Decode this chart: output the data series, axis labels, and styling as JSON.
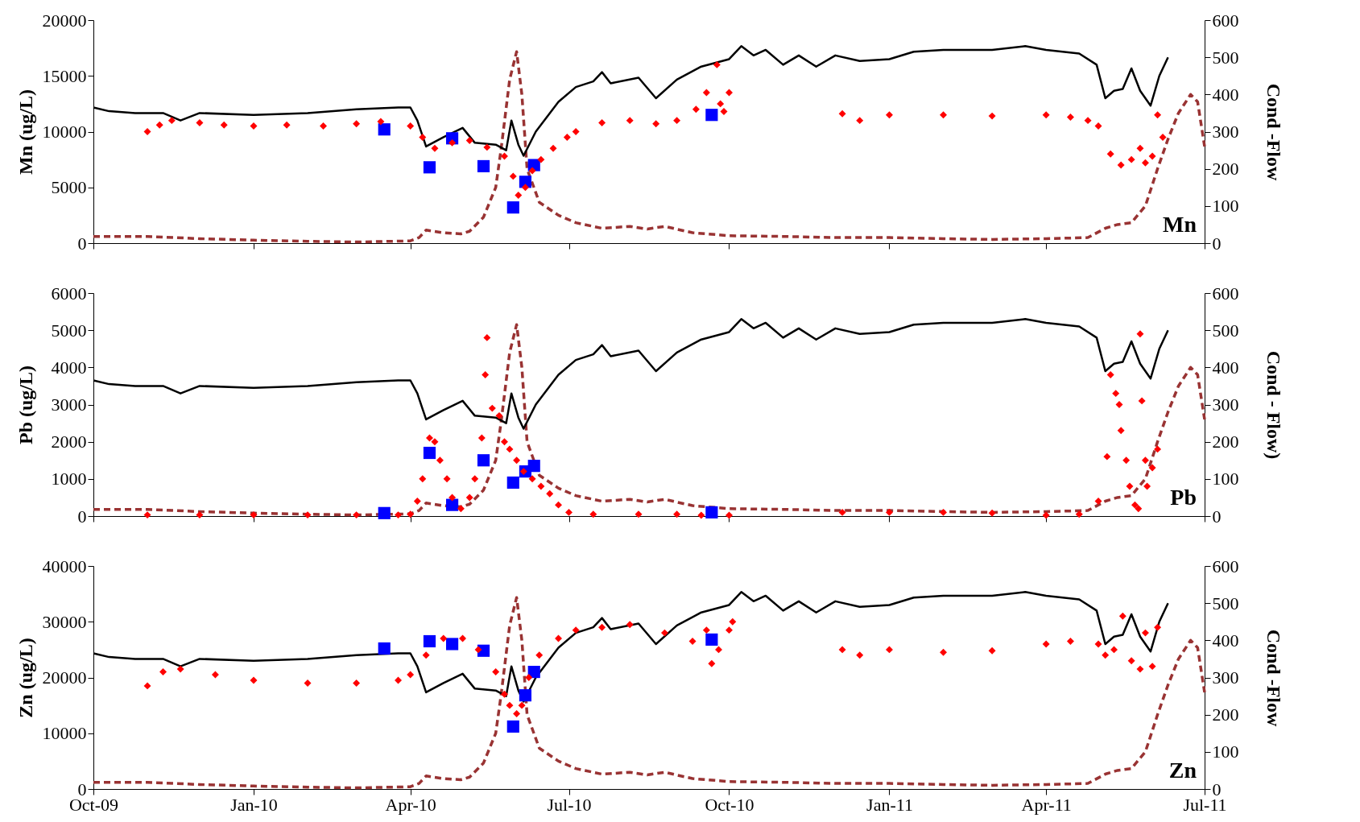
{
  "chart_data": [
    {
      "type": "scatter",
      "ylabel": "Mn (ug/L)",
      "y2label": "Cond -Flow",
      "annotations": [
        "Mn"
      ],
      "tick_labels": "y",
      "grid": false,
      "xlim": [
        "2009-10-01",
        "2011-07-01"
      ],
      "xticks": [
        {
          "value": "2009-10-01",
          "label": null
        },
        {
          "value": "2010-01-01",
          "label": null
        },
        {
          "value": "2010-04-01",
          "label": null
        },
        {
          "value": "2010-07-01",
          "label": null
        },
        {
          "value": "2010-10-01",
          "label": null
        },
        {
          "value": "2011-01-01",
          "label": null
        },
        {
          "value": "2011-04-01",
          "label": null
        },
        {
          "value": "2011-07-01",
          "label": null
        }
      ],
      "ylim": [
        0,
        20000
      ],
      "yticks": [
        0,
        5000,
        10000,
        15000,
        20000
      ],
      "y2lim": [
        0,
        600
      ],
      "y2ticks": [
        0,
        100,
        200,
        300,
        400,
        500,
        600
      ],
      "series": [
        {
          "type": "scatter",
          "marker": "diamond",
          "color": "#ff0000",
          "x": [
            "2009-11-01",
            "2009-11-08",
            "2009-11-15",
            "2009-12-01",
            "2009-12-15",
            "2010-01-01",
            "2010-01-20",
            "2010-02-10",
            "2010-03-01",
            "2010-03-15",
            "2010-04-01",
            "2010-04-08",
            "2010-04-15",
            "2010-04-25",
            "2010-05-05",
            "2010-05-15",
            "2010-05-25",
            "2010-05-30",
            "2010-06-02",
            "2010-06-06",
            "2010-06-10",
            "2010-06-15",
            "2010-06-22",
            "2010-06-30",
            "2010-07-05",
            "2010-07-20",
            "2010-08-05",
            "2010-08-20",
            "2010-09-01",
            "2010-09-12",
            "2010-09-18",
            "2010-09-24",
            "2010-09-26",
            "2010-09-28",
            "2010-10-01",
            "2010-12-05",
            "2010-12-15",
            "2011-01-01",
            "2011-02-01",
            "2011-03-01",
            "2011-04-01",
            "2011-04-15",
            "2011-04-25",
            "2011-05-01",
            "2011-05-08",
            "2011-05-14",
            "2011-05-20",
            "2011-05-25",
            "2011-05-28",
            "2011-06-01",
            "2011-06-04",
            "2011-06-07"
          ],
          "values": [
            10000,
            10600,
            11000,
            10800,
            10600,
            10500,
            10600,
            10500,
            10700,
            10900,
            10500,
            9500,
            8500,
            9000,
            9200,
            8600,
            7800,
            6000,
            4300,
            5000,
            6500,
            7500,
            8500,
            9500,
            10000,
            10800,
            11000,
            10700,
            11000,
            12000,
            13500,
            16000,
            12500,
            11800,
            13500,
            11600,
            11000,
            11500,
            11500,
            11400,
            11500,
            11300,
            11000,
            10500,
            8000,
            7000,
            7500,
            8500,
            7200,
            7800,
            11500,
            9500
          ]
        },
        {
          "type": "scatter",
          "marker": "square",
          "color": "#0000ff",
          "x": [
            "2010-03-17",
            "2010-04-12",
            "2010-04-25",
            "2010-05-13",
            "2010-05-30",
            "2010-06-06",
            "2010-06-11",
            "2010-09-21"
          ],
          "values": [
            10200,
            6800,
            9400,
            6900,
            3200,
            5500,
            7000,
            11500
          ]
        },
        {
          "type": "line",
          "axis": "y2",
          "marker": "none",
          "line_style": "solid",
          "color": "#000000",
          "x": [
            "2009-10-01",
            "2009-10-10",
            "2009-10-25",
            "2009-11-10",
            "2009-11-20",
            "2009-12-01",
            "2010-01-01",
            "2010-02-01",
            "2010-03-01",
            "2010-03-25",
            "2010-04-01",
            "2010-04-05",
            "2010-04-10",
            "2010-04-20",
            "2010-05-01",
            "2010-05-08",
            "2010-05-20",
            "2010-05-26",
            "2010-05-29",
            "2010-06-02",
            "2010-06-05",
            "2010-06-12",
            "2010-06-25",
            "2010-07-05",
            "2010-07-15",
            "2010-07-20",
            "2010-07-25",
            "2010-08-10",
            "2010-08-20",
            "2010-09-01",
            "2010-09-15",
            "2010-10-01",
            "2010-10-08",
            "2010-10-15",
            "2010-10-22",
            "2010-11-01",
            "2010-11-10",
            "2010-11-20",
            "2010-12-01",
            "2010-12-15",
            "2011-01-01",
            "2011-01-15",
            "2011-02-01",
            "2011-03-01",
            "2011-03-20",
            "2011-04-01",
            "2011-04-20",
            "2011-04-30",
            "2011-05-05",
            "2011-05-10",
            "2011-05-15",
            "2011-05-20",
            "2011-05-25",
            "2011-05-31",
            "2011-06-05",
            "2011-06-10"
          ],
          "values": [
            365,
            355,
            350,
            350,
            330,
            350,
            345,
            350,
            360,
            365,
            365,
            330,
            260,
            285,
            310,
            270,
            265,
            250,
            330,
            265,
            235,
            300,
            380,
            420,
            435,
            460,
            430,
            445,
            390,
            440,
            475,
            495,
            530,
            505,
            520,
            480,
            505,
            475,
            505,
            490,
            495,
            515,
            520,
            520,
            530,
            520,
            510,
            480,
            390,
            410,
            415,
            470,
            410,
            370,
            450,
            500
          ]
        },
        {
          "type": "line",
          "axis": "y2",
          "marker": "none",
          "line_style": "dashed",
          "color": "#993333",
          "x": [
            "2009-10-01",
            "2009-11-01",
            "2009-12-01",
            "2010-01-01",
            "2010-02-01",
            "2010-03-01",
            "2010-04-01",
            "2010-04-06",
            "2010-04-10",
            "2010-04-20",
            "2010-04-30",
            "2010-05-05",
            "2010-05-13",
            "2010-05-20",
            "2010-05-23",
            "2010-05-28",
            "2010-06-01",
            "2010-06-04",
            "2010-06-07",
            "2010-06-14",
            "2010-06-25",
            "2010-07-05",
            "2010-07-20",
            "2010-08-05",
            "2010-08-15",
            "2010-08-25",
            "2010-09-10",
            "2010-10-01",
            "2010-11-01",
            "2010-12-01",
            "2011-01-01",
            "2011-02-01",
            "2011-03-01",
            "2011-04-01",
            "2011-04-25",
            "2011-05-05",
            "2011-05-12",
            "2011-05-20",
            "2011-05-28",
            "2011-06-04",
            "2011-06-10",
            "2011-06-16",
            "2011-06-23",
            "2011-06-27",
            "2011-07-01"
          ],
          "values": [
            18,
            18,
            12,
            8,
            5,
            3,
            6,
            15,
            35,
            28,
            25,
            32,
            70,
            150,
            250,
            440,
            515,
            400,
            200,
            110,
            75,
            55,
            40,
            45,
            38,
            45,
            28,
            20,
            18,
            15,
            15,
            12,
            10,
            12,
            15,
            40,
            50,
            55,
            100,
            200,
            280,
            350,
            400,
            380,
            260
          ]
        }
      ]
    },
    {
      "type": "scatter",
      "ylabel": "Pb (ug/L)",
      "y2label": "Cond - Flow)",
      "annotations": [
        "Pb"
      ],
      "tick_labels": "y",
      "grid": false,
      "xlim": [
        "2009-10-01",
        "2011-07-01"
      ],
      "xticks": [
        {
          "value": "2009-10-01",
          "label": null
        },
        {
          "value": "2010-01-01",
          "label": null
        },
        {
          "value": "2010-04-01",
          "label": null
        },
        {
          "value": "2010-07-01",
          "label": null
        },
        {
          "value": "2010-10-01",
          "label": null
        },
        {
          "value": "2011-01-01",
          "label": null
        },
        {
          "value": "2011-04-01",
          "label": null
        },
        {
          "value": "2011-07-01",
          "label": null
        }
      ],
      "ylim": [
        0,
        6000
      ],
      "yticks": [
        0,
        1000,
        2000,
        3000,
        4000,
        5000,
        6000
      ],
      "y2lim": [
        0,
        600
      ],
      "y2ticks": [
        0,
        100,
        200,
        300,
        400,
        500,
        600
      ],
      "series": [
        {
          "type": "scatter",
          "marker": "diamond",
          "color": "#ff0000",
          "x": [
            "2009-11-01",
            "2009-12-01",
            "2010-01-01",
            "2010-02-01",
            "2010-03-01",
            "2010-03-25",
            "2010-04-01",
            "2010-04-05",
            "2010-04-08",
            "2010-04-12",
            "2010-04-15",
            "2010-04-18",
            "2010-04-22",
            "2010-04-25",
            "2010-04-30",
            "2010-05-05",
            "2010-05-08",
            "2010-05-12",
            "2010-05-14",
            "2010-05-15",
            "2010-05-18",
            "2010-05-22",
            "2010-05-25",
            "2010-05-28",
            "2010-06-01",
            "2010-06-05",
            "2010-06-10",
            "2010-06-15",
            "2010-06-20",
            "2010-06-25",
            "2010-07-01",
            "2010-07-15",
            "2010-08-10",
            "2010-09-01",
            "2010-09-15",
            "2010-10-01",
            "2010-12-05",
            "2011-01-01",
            "2011-02-01",
            "2011-03-01",
            "2011-04-01",
            "2011-04-20",
            "2011-05-01",
            "2011-05-06",
            "2011-05-08",
            "2011-05-11",
            "2011-05-13",
            "2011-05-14",
            "2011-05-17",
            "2011-05-19",
            "2011-05-22",
            "2011-05-24",
            "2011-05-25",
            "2011-05-26",
            "2011-05-28",
            "2011-05-29",
            "2011-06-01",
            "2011-06-04"
          ],
          "values": [
            30,
            30,
            30,
            30,
            30,
            30,
            50,
            400,
            1000,
            2100,
            2000,
            1500,
            1000,
            500,
            200,
            500,
            1000,
            2100,
            3800,
            4800,
            2900,
            2700,
            2000,
            1800,
            1500,
            1200,
            1000,
            800,
            600,
            300,
            100,
            50,
            50,
            50,
            20,
            20,
            100,
            100,
            100,
            80,
            20,
            50,
            400,
            1600,
            3800,
            3300,
            3000,
            2300,
            1500,
            800,
            300,
            200,
            4900,
            3100,
            1500,
            800,
            1300,
            1800
          ]
        },
        {
          "type": "scatter",
          "marker": "square",
          "color": "#0000ff",
          "x": [
            "2010-03-17",
            "2010-04-12",
            "2010-04-25",
            "2010-05-13",
            "2010-05-30",
            "2010-06-06",
            "2010-06-11",
            "2010-09-21"
          ],
          "values": [
            80,
            1700,
            300,
            1500,
            900,
            1200,
            1350,
            100
          ]
        },
        {
          "type": "line",
          "axis": "y2",
          "marker": "none",
          "line_style": "solid",
          "color": "#000000",
          "x": [
            "2009-10-01",
            "2009-10-10",
            "2009-10-25",
            "2009-11-10",
            "2009-11-20",
            "2009-12-01",
            "2010-01-01",
            "2010-02-01",
            "2010-03-01",
            "2010-03-25",
            "2010-04-01",
            "2010-04-05",
            "2010-04-10",
            "2010-04-20",
            "2010-05-01",
            "2010-05-08",
            "2010-05-20",
            "2010-05-26",
            "2010-05-29",
            "2010-06-02",
            "2010-06-05",
            "2010-06-12",
            "2010-06-25",
            "2010-07-05",
            "2010-07-15",
            "2010-07-20",
            "2010-07-25",
            "2010-08-10",
            "2010-08-20",
            "2010-09-01",
            "2010-09-15",
            "2010-10-01",
            "2010-10-08",
            "2010-10-15",
            "2010-10-22",
            "2010-11-01",
            "2010-11-10",
            "2010-11-20",
            "2010-12-01",
            "2010-12-15",
            "2011-01-01",
            "2011-01-15",
            "2011-02-01",
            "2011-03-01",
            "2011-03-20",
            "2011-04-01",
            "2011-04-20",
            "2011-04-30",
            "2011-05-05",
            "2011-05-10",
            "2011-05-15",
            "2011-05-20",
            "2011-05-25",
            "2011-05-31",
            "2011-06-05",
            "2011-06-10"
          ],
          "values": [
            365,
            355,
            350,
            350,
            330,
            350,
            345,
            350,
            360,
            365,
            365,
            330,
            260,
            285,
            310,
            270,
            265,
            250,
            330,
            265,
            235,
            300,
            380,
            420,
            435,
            460,
            430,
            445,
            390,
            440,
            475,
            495,
            530,
            505,
            520,
            480,
            505,
            475,
            505,
            490,
            495,
            515,
            520,
            520,
            530,
            520,
            510,
            480,
            390,
            410,
            415,
            470,
            410,
            370,
            450,
            500
          ]
        },
        {
          "type": "line",
          "axis": "y2",
          "marker": "none",
          "line_style": "dashed",
          "color": "#993333",
          "x": [
            "2009-10-01",
            "2009-11-01",
            "2009-12-01",
            "2010-01-01",
            "2010-02-01",
            "2010-03-01",
            "2010-04-01",
            "2010-04-06",
            "2010-04-10",
            "2010-04-20",
            "2010-04-30",
            "2010-05-05",
            "2010-05-13",
            "2010-05-20",
            "2010-05-23",
            "2010-05-28",
            "2010-06-01",
            "2010-06-04",
            "2010-06-07",
            "2010-06-14",
            "2010-06-25",
            "2010-07-05",
            "2010-07-20",
            "2010-08-05",
            "2010-08-15",
            "2010-08-25",
            "2010-09-10",
            "2010-10-01",
            "2010-11-01",
            "2010-12-01",
            "2011-01-01",
            "2011-02-01",
            "2011-03-01",
            "2011-04-01",
            "2011-04-25",
            "2011-05-05",
            "2011-05-12",
            "2011-05-20",
            "2011-05-28",
            "2011-06-04",
            "2011-06-10",
            "2011-06-16",
            "2011-06-23",
            "2011-06-27",
            "2011-07-01"
          ],
          "values": [
            18,
            18,
            12,
            8,
            5,
            3,
            6,
            15,
            35,
            28,
            25,
            32,
            70,
            150,
            250,
            440,
            515,
            400,
            200,
            110,
            75,
            55,
            40,
            45,
            38,
            45,
            28,
            20,
            18,
            15,
            15,
            12,
            10,
            12,
            15,
            40,
            50,
            55,
            100,
            200,
            280,
            350,
            400,
            380,
            260
          ]
        }
      ]
    },
    {
      "type": "scatter",
      "ylabel": "Zn (ug/L)",
      "y2label": "Cond -Flow",
      "annotations": [
        "Zn"
      ],
      "grid": false,
      "xlim": [
        "2009-10-01",
        "2011-07-01"
      ],
      "xticks": [
        {
          "value": "2009-10-01",
          "label": "Oct-09"
        },
        {
          "value": "2010-01-01",
          "label": "Jan-10"
        },
        {
          "value": "2010-04-01",
          "label": "Apr-10"
        },
        {
          "value": "2010-07-01",
          "label": "Jul-10"
        },
        {
          "value": "2010-10-01",
          "label": "Oct-10"
        },
        {
          "value": "2011-01-01",
          "label": "Jan-11"
        },
        {
          "value": "2011-04-01",
          "label": "Apr-11"
        },
        {
          "value": "2011-07-01",
          "label": "Jul-11"
        }
      ],
      "ylim": [
        0,
        40000
      ],
      "yticks": [
        0,
        10000,
        20000,
        30000,
        40000
      ],
      "y2lim": [
        0,
        600
      ],
      "y2ticks": [
        0,
        100,
        200,
        300,
        400,
        500,
        600
      ],
      "series": [
        {
          "type": "scatter",
          "marker": "diamond",
          "color": "#ff0000",
          "x": [
            "2009-11-01",
            "2009-11-10",
            "2009-11-20",
            "2009-12-10",
            "2010-01-01",
            "2010-02-01",
            "2010-03-01",
            "2010-03-25",
            "2010-04-01",
            "2010-04-10",
            "2010-04-20",
            "2010-05-01",
            "2010-05-10",
            "2010-05-20",
            "2010-05-25",
            "2010-05-28",
            "2010-06-01",
            "2010-06-04",
            "2010-06-08",
            "2010-06-14",
            "2010-06-25",
            "2010-07-05",
            "2010-07-20",
            "2010-08-05",
            "2010-08-25",
            "2010-09-10",
            "2010-09-18",
            "2010-09-21",
            "2010-09-25",
            "2010-10-01",
            "2010-10-03",
            "2010-12-05",
            "2010-12-15",
            "2011-01-01",
            "2011-02-01",
            "2011-03-01",
            "2011-04-01",
            "2011-04-15",
            "2011-05-01",
            "2011-05-05",
            "2011-05-10",
            "2011-05-15",
            "2011-05-20",
            "2011-05-25",
            "2011-05-28",
            "2011-06-01",
            "2011-06-04"
          ],
          "values": [
            18500,
            21000,
            21500,
            20500,
            19500,
            19000,
            19000,
            19500,
            20500,
            24000,
            27000,
            27000,
            25000,
            21000,
            17000,
            15000,
            13500,
            15000,
            20000,
            24000,
            27000,
            28500,
            29000,
            29500,
            28000,
            26500,
            28500,
            22500,
            25000,
            28500,
            30000,
            25000,
            24000,
            25000,
            24500,
            24800,
            26000,
            26500,
            26000,
            24000,
            25000,
            31000,
            23000,
            21500,
            28000,
            22000,
            29000
          ]
        },
        {
          "type": "scatter",
          "marker": "square",
          "color": "#0000ff",
          "x": [
            "2010-03-17",
            "2010-04-12",
            "2010-04-25",
            "2010-05-13",
            "2010-05-30",
            "2010-06-06",
            "2010-06-11",
            "2010-09-21"
          ],
          "values": [
            25200,
            26500,
            26000,
            24800,
            11200,
            16800,
            21000,
            26800
          ]
        },
        {
          "type": "line",
          "axis": "y2",
          "marker": "none",
          "line_style": "solid",
          "color": "#000000",
          "x": [
            "2009-10-01",
            "2009-10-10",
            "2009-10-25",
            "2009-11-10",
            "2009-11-20",
            "2009-12-01",
            "2010-01-01",
            "2010-02-01",
            "2010-03-01",
            "2010-03-25",
            "2010-04-01",
            "2010-04-05",
            "2010-04-10",
            "2010-04-20",
            "2010-05-01",
            "2010-05-08",
            "2010-05-20",
            "2010-05-26",
            "2010-05-29",
            "2010-06-02",
            "2010-06-05",
            "2010-06-12",
            "2010-06-25",
            "2010-07-05",
            "2010-07-15",
            "2010-07-20",
            "2010-07-25",
            "2010-08-10",
            "2010-08-20",
            "2010-09-01",
            "2010-09-15",
            "2010-10-01",
            "2010-10-08",
            "2010-10-15",
            "2010-10-22",
            "2010-11-01",
            "2010-11-10",
            "2010-11-20",
            "2010-12-01",
            "2010-12-15",
            "2011-01-01",
            "2011-01-15",
            "2011-02-01",
            "2011-03-01",
            "2011-03-20",
            "2011-04-01",
            "2011-04-20",
            "2011-04-30",
            "2011-05-05",
            "2011-05-10",
            "2011-05-15",
            "2011-05-20",
            "2011-05-25",
            "2011-05-31",
            "2011-06-05",
            "2011-06-10"
          ],
          "values": [
            365,
            355,
            350,
            350,
            330,
            350,
            345,
            350,
            360,
            365,
            365,
            330,
            260,
            285,
            310,
            270,
            265,
            250,
            330,
            265,
            235,
            300,
            380,
            420,
            435,
            460,
            430,
            445,
            390,
            440,
            475,
            495,
            530,
            505,
            520,
            480,
            505,
            475,
            505,
            490,
            495,
            515,
            520,
            520,
            530,
            520,
            510,
            480,
            390,
            410,
            415,
            470,
            410,
            370,
            450,
            500
          ]
        },
        {
          "type": "line",
          "axis": "y2",
          "marker": "none",
          "line_style": "dashed",
          "color": "#993333",
          "x": [
            "2009-10-01",
            "2009-11-01",
            "2009-12-01",
            "2010-01-01",
            "2010-02-01",
            "2010-03-01",
            "2010-04-01",
            "2010-04-06",
            "2010-04-10",
            "2010-04-20",
            "2010-04-30",
            "2010-05-05",
            "2010-05-13",
            "2010-05-20",
            "2010-05-23",
            "2010-05-28",
            "2010-06-01",
            "2010-06-04",
            "2010-06-07",
            "2010-06-14",
            "2010-06-25",
            "2010-07-05",
            "2010-07-20",
            "2010-08-05",
            "2010-08-15",
            "2010-08-25",
            "2010-09-10",
            "2010-10-01",
            "2010-11-01",
            "2010-12-01",
            "2011-01-01",
            "2011-02-01",
            "2011-03-01",
            "2011-04-01",
            "2011-04-25",
            "2011-05-05",
            "2011-05-12",
            "2011-05-20",
            "2011-05-28",
            "2011-06-04",
            "2011-06-10",
            "2011-06-16",
            "2011-06-23",
            "2011-06-27",
            "2011-07-01"
          ],
          "values": [
            18,
            18,
            12,
            8,
            5,
            3,
            6,
            15,
            35,
            28,
            25,
            32,
            70,
            150,
            250,
            440,
            515,
            400,
            200,
            110,
            75,
            55,
            40,
            45,
            38,
            45,
            28,
            20,
            18,
            15,
            15,
            12,
            10,
            12,
            15,
            40,
            50,
            55,
            100,
            200,
            280,
            350,
            400,
            380,
            260
          ]
        }
      ]
    }
  ]
}
